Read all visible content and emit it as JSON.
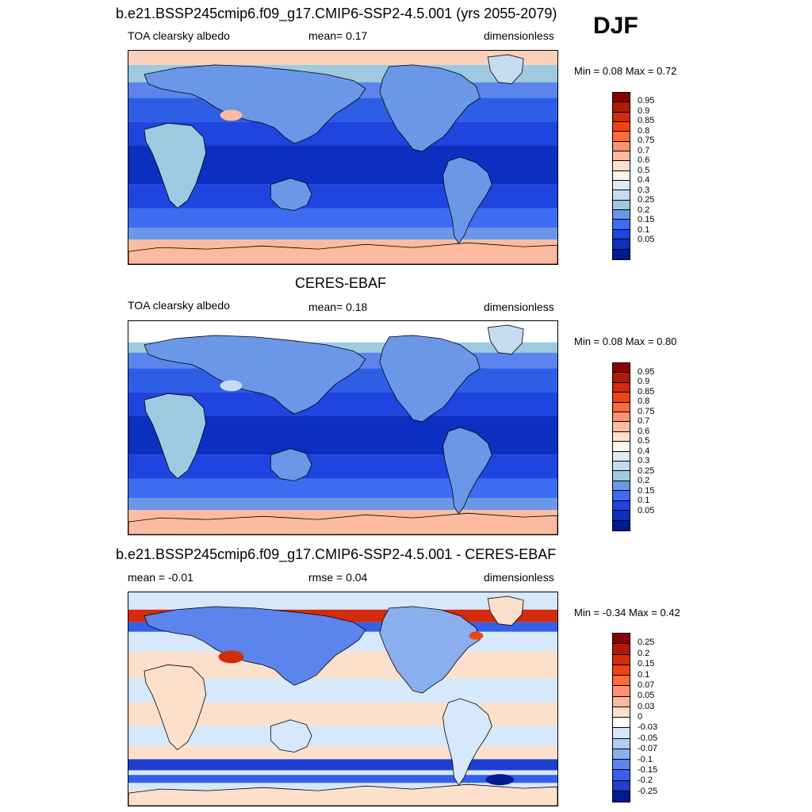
{
  "season": "DJF",
  "panels": [
    {
      "title": "b.e21.BSSP245cmip6.f09_g17.CMIP6-SSP2-4.5.001 (yrs 2055-2079)",
      "left_label": "TOA clearsky albedo",
      "center_label": "mean=   0.17",
      "units": "dimensionless",
      "min_label": "Min =",
      "min_value": "0.08",
      "max_label": "Max =",
      "max_value": "0.72",
      "kind": "model"
    },
    {
      "title": "CERES-EBAF",
      "left_label": "TOA clearsky albedo",
      "center_label": "mean=   0.18",
      "units": "dimensionless",
      "min_label": "Min =",
      "min_value": "0.08",
      "max_label": "Max =",
      "max_value": "0.80",
      "kind": "obs"
    },
    {
      "title": "b.e21.BSSP245cmip6.f09_g17.CMIP6-SSP2-4.5.001 - CERES-EBAF",
      "left_label": "mean =  -0.01",
      "center_label": "rmse =   0.04",
      "units": "dimensionless",
      "min_label": "Min =",
      "min_value": "-0.34",
      "max_label": "Max =",
      "max_value": "0.42",
      "kind": "diff"
    }
  ],
  "colorbars": {
    "abs": {
      "labels": [
        "0.95",
        "0.9",
        "0.85",
        "0.8",
        "0.75",
        "0.7",
        "0.6",
        "0.5",
        "0.4",
        "0.3",
        "0.25",
        "0.2",
        "0.15",
        "0.1",
        "0.05"
      ],
      "colors": [
        "#8b0000",
        "#b01a06",
        "#d42b0a",
        "#f0430f",
        "#fb6a3a",
        "#fc9272",
        "#fcbba1",
        "#fde0cc",
        "#fff5ef",
        "#deebf7",
        "#c6dbef",
        "#9ecae1",
        "#6a97e8",
        "#3d6cf0",
        "#1f45e0",
        "#0b2fc0",
        "#001a8f"
      ]
    },
    "diff": {
      "labels": [
        "0.25",
        "0.2",
        "0.15",
        "0.1",
        "0.07",
        "0.05",
        "0.03",
        "0",
        "-0.03",
        "-0.05",
        "-0.07",
        "-0.1",
        "-0.15",
        "-0.2",
        "-0.25"
      ],
      "colors": [
        "#8b0000",
        "#b01a06",
        "#d42b0a",
        "#f0430f",
        "#fb6a3a",
        "#fc9272",
        "#fcbba1",
        "#fde0cc",
        "#ffffff",
        "#d6e8fb",
        "#b2cdf2",
        "#8aaeee",
        "#5b85ec",
        "#3560e8",
        "#1f3fcf",
        "#001a8f"
      ]
    }
  }
}
